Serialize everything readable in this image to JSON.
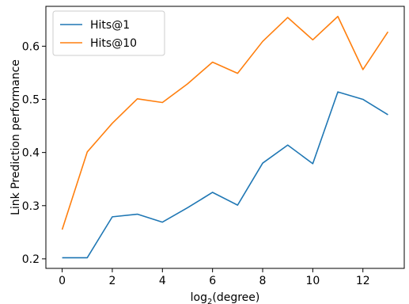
{
  "chart_data": {
    "type": "line",
    "title": "",
    "xlabel": "log2(degree)",
    "xlabel_base": "log",
    "xlabel_sub": "2",
    "xlabel_rest": "(degree)",
    "ylabel": "Link Prediction performance",
    "x": [
      0,
      1,
      2,
      3,
      4,
      5,
      6,
      7,
      8,
      9,
      10,
      11,
      12,
      13
    ],
    "xlim": [
      -0.65,
      13.65
    ],
    "ylim": [
      0.182,
      0.675
    ],
    "xticks": [
      0,
      2,
      4,
      6,
      8,
      10,
      12
    ],
    "yticks": [
      0.2,
      0.3,
      0.4,
      0.5,
      0.6
    ],
    "ytick_labels": [
      "0.2",
      "0.3",
      "0.4",
      "0.5",
      "0.6"
    ],
    "grid": false,
    "legend_position": "top-left",
    "series": [
      {
        "name": "Hits@1",
        "color": "#1f77b4",
        "values": [
          0.202,
          0.202,
          0.279,
          0.284,
          0.269,
          0.296,
          0.325,
          0.301,
          0.38,
          0.414,
          0.379,
          0.514,
          0.5,
          0.471
        ]
      },
      {
        "name": "Hits@10",
        "color": "#ff7f0e",
        "values": [
          0.255,
          0.401,
          0.455,
          0.501,
          0.494,
          0.529,
          0.57,
          0.549,
          0.609,
          0.654,
          0.612,
          0.656,
          0.556,
          0.627
        ]
      }
    ]
  }
}
